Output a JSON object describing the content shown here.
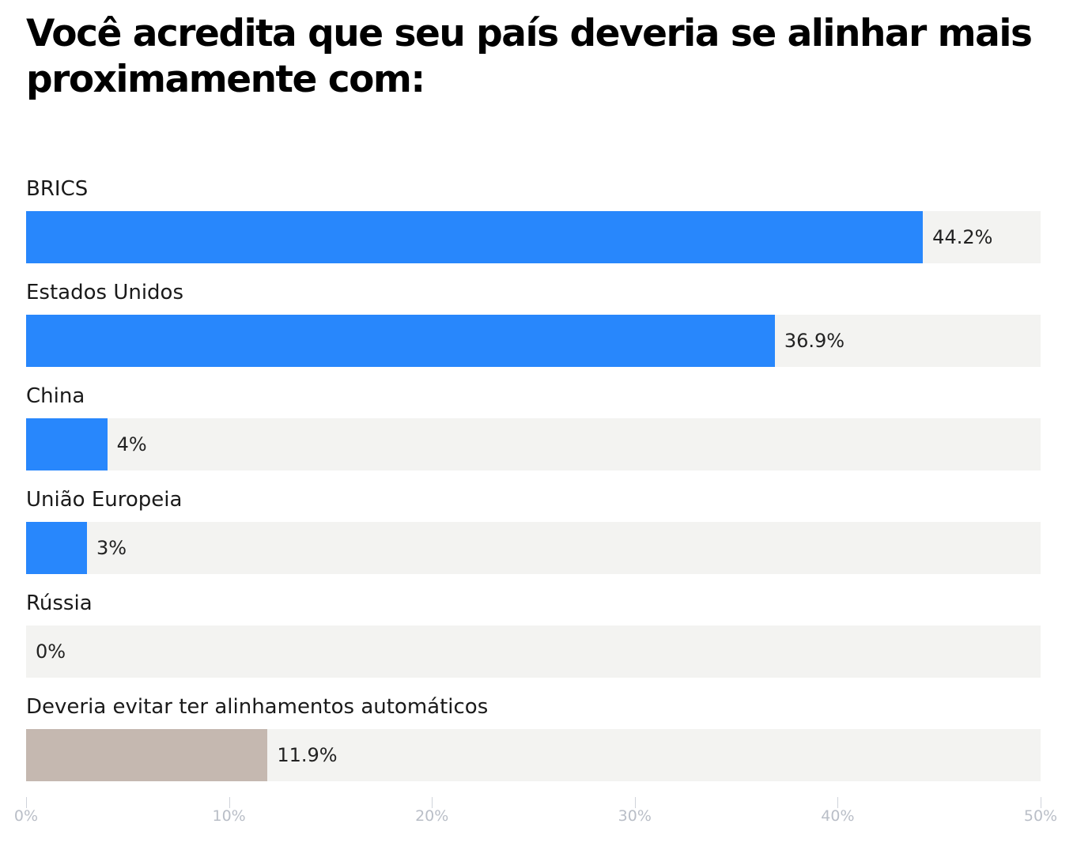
{
  "chart_data": {
    "type": "bar",
    "orientation": "horizontal",
    "title": "Você acredita que seu país deveria se alinhar mais proximamente com:",
    "xlabel": "",
    "ylabel": "",
    "xlim": [
      0,
      50
    ],
    "grid": false,
    "categories": [
      "BRICS",
      "Estados Unidos",
      "China",
      "União Europeia",
      "Rússia",
      "Deveria evitar ter alinhamentos automáticos"
    ],
    "values": [
      44.2,
      36.9,
      4,
      3,
      0,
      11.9
    ],
    "value_labels": [
      "44.2%",
      "36.9%",
      "4%",
      "3%",
      "0%",
      "11.9%"
    ],
    "colors": [
      "#2887fc",
      "#2887fc",
      "#2887fc",
      "#2887fc",
      "#2887fc",
      "#c5b8b0"
    ],
    "track_color": "#f3f3f1",
    "ticks": [
      0,
      10,
      20,
      30,
      40,
      50
    ],
    "tick_labels": [
      "0%",
      "10%",
      "20%",
      "30%",
      "40%",
      "50%"
    ]
  }
}
